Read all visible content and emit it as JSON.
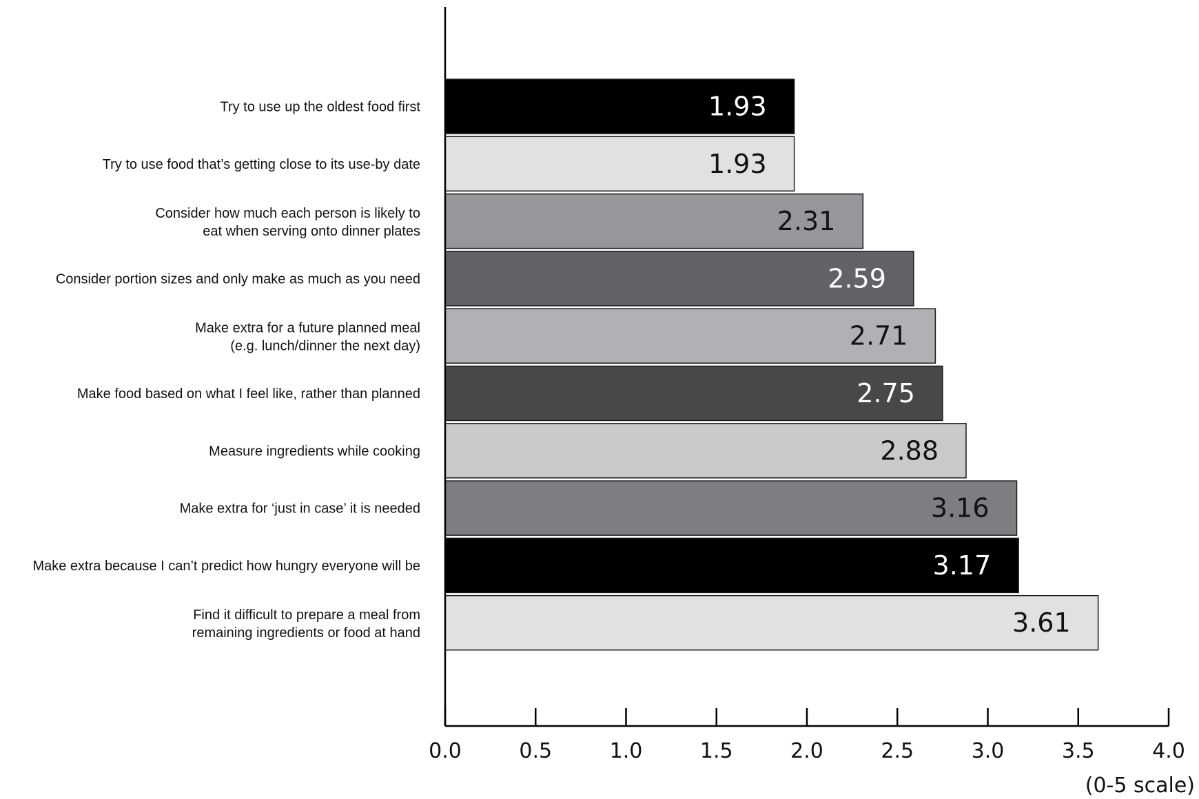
{
  "chart_data": {
    "type": "bar",
    "orientation": "horizontal",
    "categories": [
      [
        "Try to use up the oldest food first"
      ],
      [
        "Try to use food that’s getting close to its use-by date"
      ],
      [
        "Consider how much each person is likely to",
        "eat when serving onto dinner plates"
      ],
      [
        "Consider portion sizes and only make as much as you need"
      ],
      [
        "Make extra for a future planned meal",
        "(e.g. lunch/dinner the next day)"
      ],
      [
        "Make food based on what I feel like, rather than planned"
      ],
      [
        "Measure ingredients while cooking"
      ],
      [
        "Make extra for ‘just in case’ it is needed"
      ],
      [
        "Make extra because I can’t predict how hungry everyone will be"
      ],
      [
        "Find it difficult to prepare a meal from",
        "remaining ingredients or food at hand"
      ]
    ],
    "values": [
      1.93,
      1.93,
      2.31,
      2.59,
      2.71,
      2.75,
      2.88,
      3.16,
      3.17,
      3.61
    ],
    "value_labels": [
      "1.93",
      "1.93",
      "2.31",
      "2.59",
      "2.71",
      "2.75",
      "2.88",
      "3.16",
      "3.17",
      "3.61"
    ],
    "bar_colors": [
      "#000000",
      "#e0e1e3",
      "#96979a",
      "#626366",
      "#b0b1b4",
      "#48484a",
      "#c9cacc",
      "#7d7e81",
      "#000000",
      "#e0e1e3"
    ],
    "label_colors": [
      "#ffffff",
      "#111111",
      "#111111",
      "#ffffff",
      "#111111",
      "#ffffff",
      "#111111",
      "#111111",
      "#ffffff",
      "#111111"
    ],
    "xlim": [
      0,
      4
    ],
    "xticks": [
      "0.0",
      "0.5",
      "1.0",
      "1.5",
      "2.0",
      "2.5",
      "3.0",
      "3.5",
      "4.0"
    ],
    "xunit": "(0-5 scale)",
    "grid": false,
    "legend": "none"
  }
}
